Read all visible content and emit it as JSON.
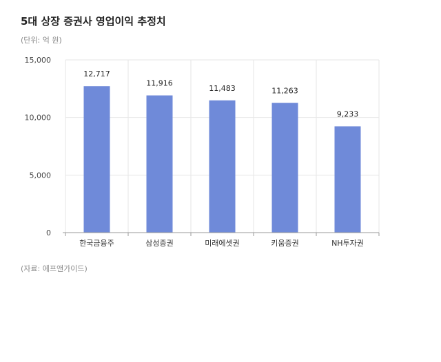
{
  "header": {
    "title": "5대 상장 증권사 영업이익 추정치",
    "unit": "(단위: 억 원)"
  },
  "footer": {
    "source": "(자료: 에프앤가이드)"
  },
  "colors": {
    "bar": "#6f8ad9",
    "grid": "#e6e6e6",
    "axis": "#999999"
  },
  "chart_data": {
    "type": "bar",
    "categories": [
      "한국금융주",
      "삼성증권",
      "미래에셋권",
      "키움증권",
      "NH투자권"
    ],
    "values": [
      12717,
      11916,
      11483,
      11263,
      9233
    ],
    "data_labels": [
      "12,717",
      "11,916",
      "11,483",
      "11,263",
      "9,233"
    ],
    "y_ticks": [
      0,
      5000,
      10000,
      15000
    ],
    "y_tick_labels": [
      "0",
      "5,000",
      "10,000",
      "15,000"
    ],
    "ylim": [
      0,
      15000
    ],
    "title": "5대 상장 증권사 영업이익 추정치",
    "xlabel": "",
    "ylabel": "",
    "grid": true
  }
}
